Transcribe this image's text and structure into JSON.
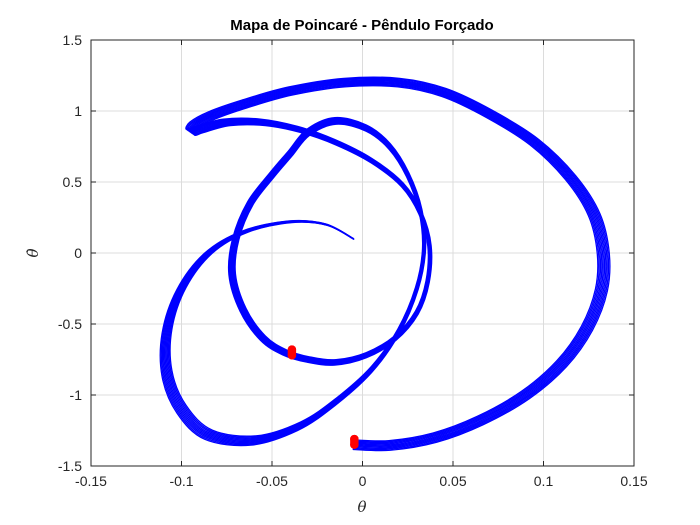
{
  "chart_data": {
    "type": "line",
    "title": "Mapa de Poincaré - Pêndulo Forçado",
    "xlabel": "θ",
    "ylabel": "θ̇",
    "xlim": [
      -0.15,
      0.15
    ],
    "ylim": [
      -1.5,
      1.5
    ],
    "xticks": [
      -0.15,
      -0.1,
      -0.05,
      0,
      0.05,
      0.1,
      0.15
    ],
    "xtick_labels": [
      "-0.15",
      "-0.1",
      "-0.05",
      "0",
      "0.05",
      "0.1",
      "0.15"
    ],
    "yticks": [
      -1.5,
      -1,
      -0.5,
      0,
      0.5,
      1,
      1.5
    ],
    "ytick_labels": [
      "-1.5",
      "-1",
      "-0.5",
      "0",
      "0.5",
      "1",
      "1.5"
    ],
    "grid": true,
    "colors": {
      "trajectory": "#0000ff",
      "poincare_points": "#ff0000"
    },
    "series": [
      {
        "kind": "trajectory-band",
        "repeats": 10,
        "band_spread": 0.05,
        "x": [
          -0.005,
          0.015,
          0.04,
          0.065,
          0.09,
          0.11,
          0.124,
          0.132,
          0.133,
          0.128,
          0.115,
          0.095,
          0.07,
          0.045,
          0.02,
          -0.01,
          -0.04,
          -0.065,
          -0.083,
          -0.093,
          -0.095,
          -0.09,
          -0.075,
          -0.055,
          -0.035,
          -0.015,
          0.005,
          0.022,
          0.032,
          0.037,
          0.036,
          0.03,
          0.018,
          0.002,
          -0.015,
          -0.03,
          -0.043,
          -0.055,
          -0.066,
          -0.072,
          -0.07,
          -0.062,
          -0.05,
          -0.04,
          -0.03,
          -0.015,
          0.002,
          0.015,
          0.025,
          0.032,
          0.034,
          0.03,
          0.02,
          0.005,
          -0.015,
          -0.035,
          -0.06,
          -0.085,
          -0.1,
          -0.108,
          -0.108,
          -0.1,
          -0.085,
          -0.065,
          -0.04,
          -0.02,
          -0.005
        ],
        "y": [
          -1.35,
          -1.355,
          -1.3,
          -1.18,
          -1.0,
          -0.78,
          -0.53,
          -0.26,
          0.0,
          0.27,
          0.53,
          0.78,
          0.98,
          1.13,
          1.2,
          1.2,
          1.14,
          1.05,
          0.97,
          0.9,
          0.85,
          0.87,
          0.92,
          0.92,
          0.87,
          0.78,
          0.65,
          0.48,
          0.28,
          0.05,
          -0.2,
          -0.42,
          -0.6,
          -0.72,
          -0.77,
          -0.75,
          -0.7,
          -0.6,
          -0.4,
          -0.15,
          0.1,
          0.35,
          0.55,
          0.7,
          0.85,
          0.93,
          0.88,
          0.75,
          0.55,
          0.3,
          0.03,
          -0.25,
          -0.55,
          -0.82,
          -1.05,
          -1.22,
          -1.32,
          -1.28,
          -1.1,
          -0.85,
          -0.55,
          -0.25,
          0.0,
          0.15,
          0.22,
          0.2,
          0.1
        ]
      }
    ],
    "poincare_points": [
      {
        "x": -0.039,
        "y": -0.68
      },
      {
        "x": -0.039,
        "y": -0.72
      },
      {
        "x": -0.0045,
        "y": -1.31
      },
      {
        "x": -0.0045,
        "y": -1.35
      }
    ]
  }
}
